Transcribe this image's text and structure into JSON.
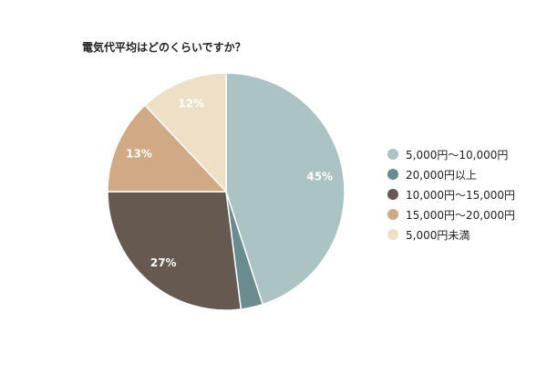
{
  "chart_data": {
    "type": "pie",
    "title": "電気代平均はどのくらいですか？",
    "categories": [
      "5,000円～10,000円",
      "20,000円以上",
      "10,000円～15,000円",
      "15,000円～20,000円",
      "5,000円未満"
    ],
    "values": [
      45,
      3,
      27,
      13,
      12
    ],
    "value_labels": [
      "45%",
      "",
      "27%",
      "13%",
      "12%"
    ],
    "colors": [
      "#abc3c3",
      "#6a8c8f",
      "#665a50",
      "#d0a985",
      "#ede0c6"
    ],
    "legend_position": "right",
    "start_angle": "top",
    "direction": "clockwise"
  }
}
